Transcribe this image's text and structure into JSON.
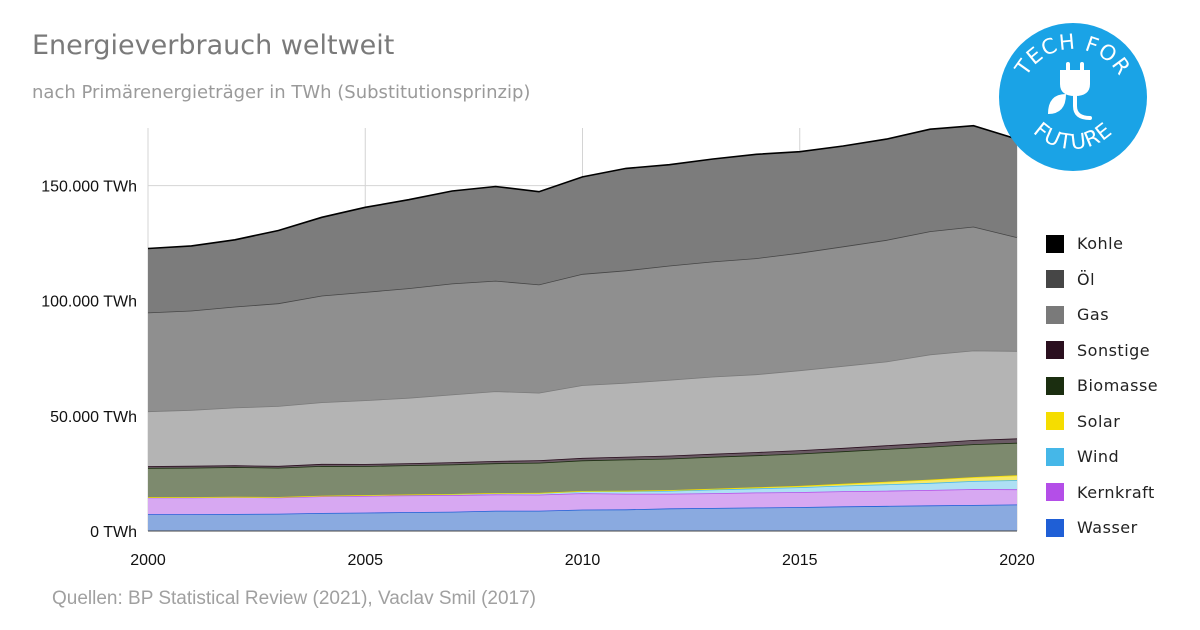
{
  "title": "Energieverbrauch weltweit",
  "subtitle": "nach Primärenergieträger in TWh (Substitutionsprinzip)",
  "source": "Quellen: BP Statistical Review (2021), Vaclav Smil (2017)",
  "logo": {
    "text_top": "TECH FOR",
    "text_bottom": "FUTURE",
    "color": "#1aa3e6",
    "icon": "plug-leaf-icon"
  },
  "chart_data": {
    "type": "area",
    "stacked": true,
    "x": [
      2000,
      2001,
      2002,
      2003,
      2004,
      2005,
      2006,
      2007,
      2008,
      2009,
      2010,
      2011,
      2012,
      2013,
      2014,
      2015,
      2016,
      2017,
      2018,
      2019,
      2020
    ],
    "xticks": [
      2000,
      2005,
      2010,
      2015,
      2020
    ],
    "ylim": [
      0,
      175000
    ],
    "yticks": [
      0,
      50000,
      100000,
      150000
    ],
    "ytick_labels": [
      "0 TWh",
      "50.000 TWh",
      "100.000 TWh",
      "150.000 TWh"
    ],
    "grid": true,
    "legend_position": "right",
    "series": [
      {
        "name": "Wasser",
        "color": "#1f5fd6",
        "fill": "#8aaae0",
        "values": [
          7300,
          7300,
          7400,
          7500,
          7800,
          8000,
          8200,
          8400,
          8800,
          8800,
          9300,
          9400,
          9800,
          10000,
          10200,
          10400,
          10700,
          10900,
          11100,
          11300,
          11500
        ]
      },
      {
        "name": "Kernkraft",
        "color": "#b44ee8",
        "fill": "#d7a8f2",
        "values": [
          7300,
          7300,
          7300,
          7100,
          7300,
          7300,
          7300,
          7200,
          7100,
          7000,
          7100,
          6800,
          6400,
          6400,
          6500,
          6500,
          6600,
          6600,
          6700,
          6900,
          6600
        ]
      },
      {
        "name": "Wind",
        "color": "#45b7e8",
        "fill": "#aee0f4",
        "values": [
          80,
          100,
          140,
          170,
          220,
          270,
          340,
          440,
          560,
          700,
          870,
          1100,
          1300,
          1600,
          1800,
          2100,
          2400,
          2800,
          3100,
          3500,
          4000
        ]
      },
      {
        "name": "Solar",
        "color": "#f5dd00",
        "fill": "#f5e86a",
        "values": [
          2,
          3,
          4,
          5,
          7,
          10,
          14,
          20,
          30,
          50,
          80,
          160,
          250,
          340,
          460,
          600,
          800,
          1100,
          1400,
          1700,
          2100
        ]
      },
      {
        "name": "Biomasse",
        "color": "#1b2e10",
        "fill": "#7d8a6e",
        "values": [
          12700,
          12800,
          12900,
          12700,
          12900,
          12600,
          12700,
          12800,
          12900,
          13100,
          13300,
          13600,
          13700,
          13900,
          13900,
          14000,
          14100,
          14200,
          14300,
          14300,
          14100
        ]
      },
      {
        "name": "Sonstige",
        "color": "#2a0f1f",
        "fill": "#6a5a64",
        "values": [
          800,
          800,
          800,
          800,
          900,
          900,
          900,
          1000,
          1000,
          1100,
          1100,
          1200,
          1300,
          1300,
          1400,
          1500,
          1500,
          1600,
          1700,
          1800,
          1900
        ]
      },
      {
        "name": "Gas",
        "color": "#7a7a7a",
        "fill": "#b4b4b4",
        "values": [
          23800,
          24300,
          25100,
          26000,
          26800,
          27700,
          28400,
          29400,
          30300,
          29300,
          31600,
          32100,
          32900,
          33500,
          33800,
          34700,
          35600,
          36400,
          38400,
          38900,
          38000
        ]
      },
      {
        "name": "Öl",
        "color": "#464646",
        "fill": "#8f8f8f",
        "values": [
          42900,
          43100,
          43800,
          44600,
          46300,
          47000,
          47600,
          48200,
          48000,
          47000,
          48300,
          48800,
          49600,
          50000,
          50400,
          51000,
          51900,
          52800,
          53500,
          53800,
          49400
        ]
      },
      {
        "name": "Kohle",
        "color": "#000000",
        "fill": "#7c7c7c",
        "values": [
          27800,
          28100,
          29000,
          31600,
          34000,
          36800,
          38400,
          40200,
          40900,
          40300,
          42100,
          44300,
          43800,
          44500,
          45100,
          43900,
          43600,
          43800,
          44300,
          43800,
          42600
        ]
      }
    ]
  }
}
